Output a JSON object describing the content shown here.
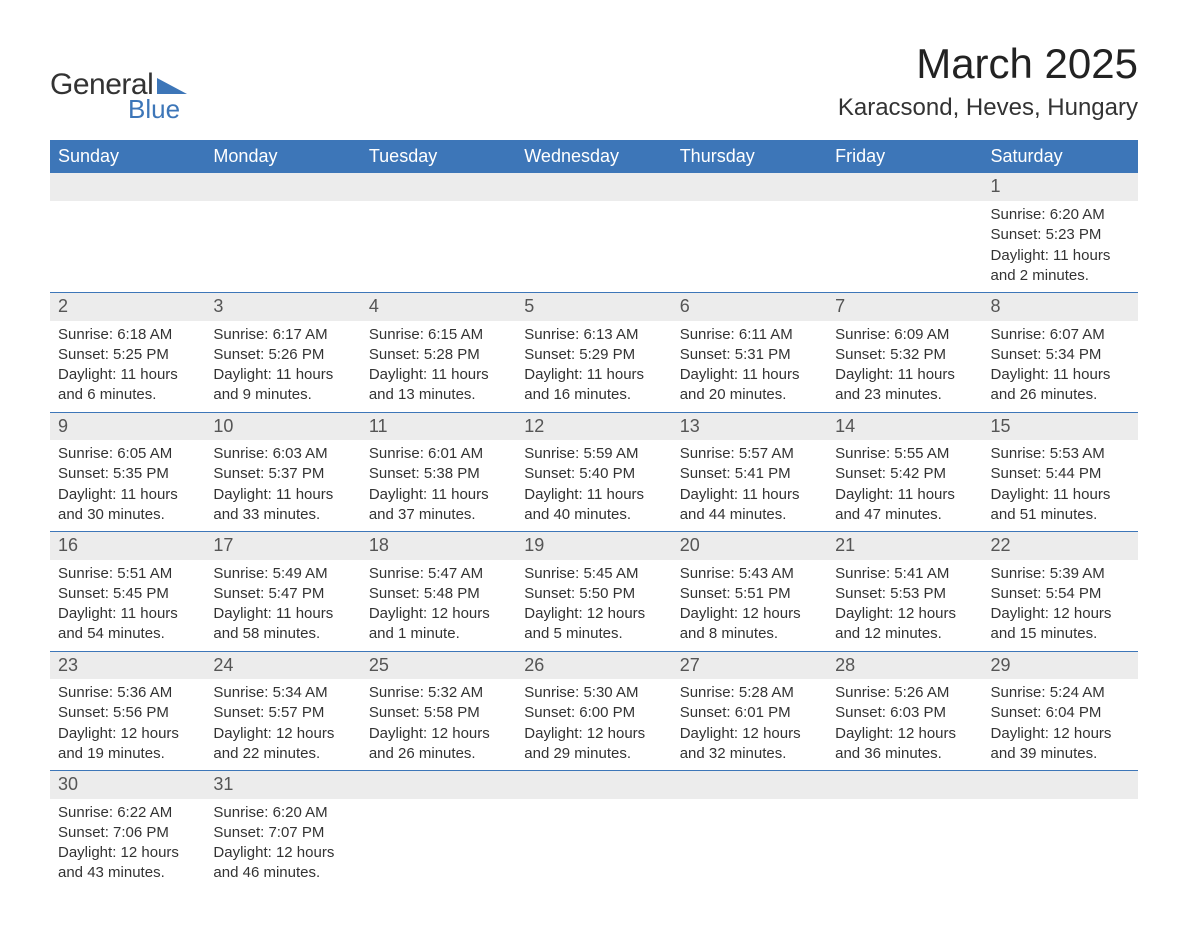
{
  "brand": {
    "word1": "General",
    "word2": "Blue",
    "triangle_color": "#3d76b8"
  },
  "title": "March 2025",
  "location": "Karacsond, Heves, Hungary",
  "colors": {
    "header_bg": "#3d76b8",
    "header_text": "#ffffff",
    "daynum_bg": "#ececec",
    "row_border": "#3d76b8",
    "body_text": "#333333"
  },
  "weekdays": [
    "Sunday",
    "Monday",
    "Tuesday",
    "Wednesday",
    "Thursday",
    "Friday",
    "Saturday"
  ],
  "weeks": [
    [
      null,
      null,
      null,
      null,
      null,
      null,
      {
        "n": "1",
        "sr": "Sunrise: 6:20 AM",
        "ss": "Sunset: 5:23 PM",
        "dl": "Daylight: 11 hours and 2 minutes."
      }
    ],
    [
      {
        "n": "2",
        "sr": "Sunrise: 6:18 AM",
        "ss": "Sunset: 5:25 PM",
        "dl": "Daylight: 11 hours and 6 minutes."
      },
      {
        "n": "3",
        "sr": "Sunrise: 6:17 AM",
        "ss": "Sunset: 5:26 PM",
        "dl": "Daylight: 11 hours and 9 minutes."
      },
      {
        "n": "4",
        "sr": "Sunrise: 6:15 AM",
        "ss": "Sunset: 5:28 PM",
        "dl": "Daylight: 11 hours and 13 minutes."
      },
      {
        "n": "5",
        "sr": "Sunrise: 6:13 AM",
        "ss": "Sunset: 5:29 PM",
        "dl": "Daylight: 11 hours and 16 minutes."
      },
      {
        "n": "6",
        "sr": "Sunrise: 6:11 AM",
        "ss": "Sunset: 5:31 PM",
        "dl": "Daylight: 11 hours and 20 minutes."
      },
      {
        "n": "7",
        "sr": "Sunrise: 6:09 AM",
        "ss": "Sunset: 5:32 PM",
        "dl": "Daylight: 11 hours and 23 minutes."
      },
      {
        "n": "8",
        "sr": "Sunrise: 6:07 AM",
        "ss": "Sunset: 5:34 PM",
        "dl": "Daylight: 11 hours and 26 minutes."
      }
    ],
    [
      {
        "n": "9",
        "sr": "Sunrise: 6:05 AM",
        "ss": "Sunset: 5:35 PM",
        "dl": "Daylight: 11 hours and 30 minutes."
      },
      {
        "n": "10",
        "sr": "Sunrise: 6:03 AM",
        "ss": "Sunset: 5:37 PM",
        "dl": "Daylight: 11 hours and 33 minutes."
      },
      {
        "n": "11",
        "sr": "Sunrise: 6:01 AM",
        "ss": "Sunset: 5:38 PM",
        "dl": "Daylight: 11 hours and 37 minutes."
      },
      {
        "n": "12",
        "sr": "Sunrise: 5:59 AM",
        "ss": "Sunset: 5:40 PM",
        "dl": "Daylight: 11 hours and 40 minutes."
      },
      {
        "n": "13",
        "sr": "Sunrise: 5:57 AM",
        "ss": "Sunset: 5:41 PM",
        "dl": "Daylight: 11 hours and 44 minutes."
      },
      {
        "n": "14",
        "sr": "Sunrise: 5:55 AM",
        "ss": "Sunset: 5:42 PM",
        "dl": "Daylight: 11 hours and 47 minutes."
      },
      {
        "n": "15",
        "sr": "Sunrise: 5:53 AM",
        "ss": "Sunset: 5:44 PM",
        "dl": "Daylight: 11 hours and 51 minutes."
      }
    ],
    [
      {
        "n": "16",
        "sr": "Sunrise: 5:51 AM",
        "ss": "Sunset: 5:45 PM",
        "dl": "Daylight: 11 hours and 54 minutes."
      },
      {
        "n": "17",
        "sr": "Sunrise: 5:49 AM",
        "ss": "Sunset: 5:47 PM",
        "dl": "Daylight: 11 hours and 58 minutes."
      },
      {
        "n": "18",
        "sr": "Sunrise: 5:47 AM",
        "ss": "Sunset: 5:48 PM",
        "dl": "Daylight: 12 hours and 1 minute."
      },
      {
        "n": "19",
        "sr": "Sunrise: 5:45 AM",
        "ss": "Sunset: 5:50 PM",
        "dl": "Daylight: 12 hours and 5 minutes."
      },
      {
        "n": "20",
        "sr": "Sunrise: 5:43 AM",
        "ss": "Sunset: 5:51 PM",
        "dl": "Daylight: 12 hours and 8 minutes."
      },
      {
        "n": "21",
        "sr": "Sunrise: 5:41 AM",
        "ss": "Sunset: 5:53 PM",
        "dl": "Daylight: 12 hours and 12 minutes."
      },
      {
        "n": "22",
        "sr": "Sunrise: 5:39 AM",
        "ss": "Sunset: 5:54 PM",
        "dl": "Daylight: 12 hours and 15 minutes."
      }
    ],
    [
      {
        "n": "23",
        "sr": "Sunrise: 5:36 AM",
        "ss": "Sunset: 5:56 PM",
        "dl": "Daylight: 12 hours and 19 minutes."
      },
      {
        "n": "24",
        "sr": "Sunrise: 5:34 AM",
        "ss": "Sunset: 5:57 PM",
        "dl": "Daylight: 12 hours and 22 minutes."
      },
      {
        "n": "25",
        "sr": "Sunrise: 5:32 AM",
        "ss": "Sunset: 5:58 PM",
        "dl": "Daylight: 12 hours and 26 minutes."
      },
      {
        "n": "26",
        "sr": "Sunrise: 5:30 AM",
        "ss": "Sunset: 6:00 PM",
        "dl": "Daylight: 12 hours and 29 minutes."
      },
      {
        "n": "27",
        "sr": "Sunrise: 5:28 AM",
        "ss": "Sunset: 6:01 PM",
        "dl": "Daylight: 12 hours and 32 minutes."
      },
      {
        "n": "28",
        "sr": "Sunrise: 5:26 AM",
        "ss": "Sunset: 6:03 PM",
        "dl": "Daylight: 12 hours and 36 minutes."
      },
      {
        "n": "29",
        "sr": "Sunrise: 5:24 AM",
        "ss": "Sunset: 6:04 PM",
        "dl": "Daylight: 12 hours and 39 minutes."
      }
    ],
    [
      {
        "n": "30",
        "sr": "Sunrise: 6:22 AM",
        "ss": "Sunset: 7:06 PM",
        "dl": "Daylight: 12 hours and 43 minutes."
      },
      {
        "n": "31",
        "sr": "Sunrise: 6:20 AM",
        "ss": "Sunset: 7:07 PM",
        "dl": "Daylight: 12 hours and 46 minutes."
      },
      null,
      null,
      null,
      null,
      null
    ]
  ]
}
